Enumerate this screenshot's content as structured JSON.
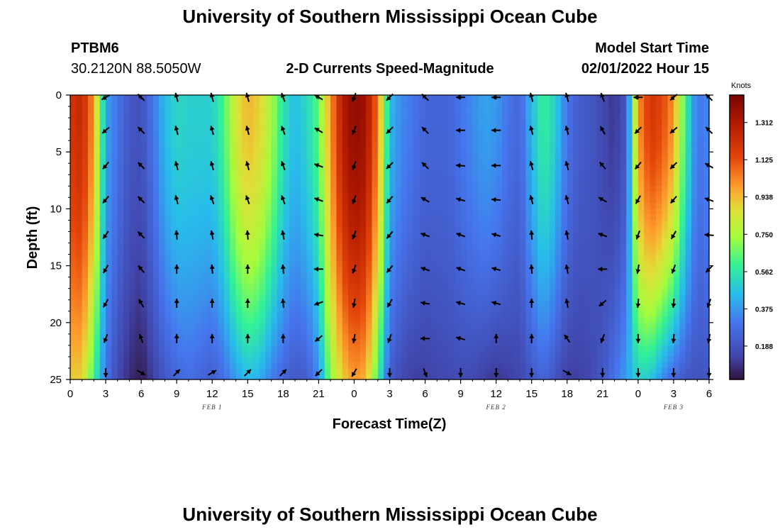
{
  "page": {
    "title_top": "University of Southern Mississippi Ocean Cube",
    "title_bottom": "University of Southern Mississippi Ocean Cube",
    "station": "PTBM6",
    "location": "30.2120N  88.5050W",
    "plot_title": "2-D Currents Speed-Magnitude",
    "model_start_label": "Model Start Time",
    "model_start_value": "02/01/2022 Hour 15"
  },
  "chart_data": {
    "type": "heatmap",
    "title": "2-D Currents Speed-Magnitude",
    "xlabel": "Forecast Time(Z)",
    "ylabel": "Depth (ft)",
    "x_tick_labels": [
      "0",
      "3",
      "6",
      "9",
      "12",
      "15",
      "18",
      "21",
      "0",
      "3",
      "6",
      "9",
      "12",
      "15",
      "18",
      "21",
      "0",
      "3",
      "6"
    ],
    "y_ticks": [
      0,
      5,
      10,
      15,
      20,
      25
    ],
    "ylim": [
      0,
      25
    ],
    "xlim": [
      0,
      54
    ],
    "date_labels": [
      {
        "text": "FEB 1",
        "x": 12
      },
      {
        "text": "FEB 2",
        "x": 36
      },
      {
        "text": "FEB 3",
        "x": 51
      }
    ],
    "colorbar": {
      "unit": "Knots",
      "ticks": [
        "1.312",
        "1.125",
        "0.938",
        "0.750",
        "0.562",
        "0.375",
        "0.188"
      ],
      "range": [
        0.02,
        1.45
      ]
    },
    "speed_profile": {
      "hours": [
        0,
        1,
        2,
        3,
        4,
        5,
        6,
        7,
        8,
        9,
        10,
        11,
        12,
        13,
        14,
        15,
        16,
        17,
        18,
        19,
        20,
        21,
        22,
        23,
        24,
        25,
        26,
        27,
        28,
        29,
        30,
        31,
        32,
        33,
        34,
        35,
        36,
        37,
        38,
        39,
        40,
        41,
        42,
        43,
        44,
        45,
        46,
        47,
        48,
        49,
        50,
        51,
        52,
        53,
        54
      ],
      "surface_knots": [
        1.2,
        1.25,
        1.0,
        0.4,
        0.3,
        0.2,
        0.18,
        0.3,
        0.45,
        0.52,
        0.5,
        0.5,
        0.5,
        0.62,
        0.85,
        0.95,
        0.9,
        0.75,
        0.55,
        0.45,
        0.52,
        0.65,
        1.0,
        1.3,
        1.4,
        1.35,
        1.05,
        0.45,
        0.35,
        0.3,
        0.25,
        0.25,
        0.25,
        0.3,
        0.35,
        0.4,
        0.38,
        0.3,
        0.25,
        0.45,
        0.6,
        0.5,
        0.3,
        0.22,
        0.2,
        0.15,
        0.1,
        0.2,
        1.0,
        1.2,
        1.15,
        1.0,
        0.6,
        0.3,
        0.35
      ],
      "bottom_knots": [
        0.9,
        0.9,
        0.6,
        0.3,
        0.15,
        0.08,
        0.04,
        0.12,
        0.2,
        0.25,
        0.28,
        0.25,
        0.22,
        0.28,
        0.38,
        0.45,
        0.42,
        0.32,
        0.25,
        0.2,
        0.22,
        0.35,
        0.7,
        0.9,
        1.0,
        0.95,
        0.6,
        0.22,
        0.15,
        0.12,
        0.12,
        0.14,
        0.15,
        0.16,
        0.15,
        0.12,
        0.1,
        0.12,
        0.14,
        0.2,
        0.25,
        0.18,
        0.12,
        0.12,
        0.15,
        0.2,
        0.3,
        0.4,
        0.5,
        0.48,
        0.35,
        0.25,
        0.2,
        0.18,
        0.2
      ]
    },
    "vectors": {
      "hours": [
        3,
        6,
        9,
        12,
        15,
        18,
        21,
        24,
        27,
        30,
        33,
        36,
        39,
        42,
        45,
        48,
        51,
        54
      ],
      "depths_ft": [
        0.2,
        3.1,
        6.2,
        9.2,
        12.3,
        15.3,
        18.3,
        21.4,
        24.4
      ],
      "direction_deg": [
        [
          240,
          315,
          345,
          345,
          345,
          340,
          300,
          200,
          225,
          315,
          270,
          270,
          345,
          345,
          340,
          270,
          230,
          315
        ],
        [
          230,
          315,
          345,
          345,
          345,
          340,
          300,
          200,
          225,
          315,
          270,
          270,
          345,
          345,
          330,
          225,
          230,
          315
        ],
        [
          220,
          315,
          345,
          345,
          345,
          340,
          290,
          200,
          225,
          315,
          275,
          270,
          345,
          345,
          320,
          220,
          225,
          300
        ],
        [
          220,
          315,
          345,
          340,
          340,
          340,
          290,
          200,
          220,
          300,
          285,
          275,
          345,
          345,
          300,
          210,
          220,
          290
        ],
        [
          215,
          315,
          355,
          350,
          355,
          350,
          280,
          200,
          220,
          290,
          290,
          285,
          355,
          350,
          290,
          200,
          210,
          275
        ],
        [
          210,
          320,
          360,
          355,
          360,
          355,
          270,
          200,
          220,
          290,
          290,
          285,
          355,
          350,
          270,
          190,
          200,
          225
        ],
        [
          210,
          330,
          360,
          360,
          360,
          355,
          250,
          190,
          210,
          280,
          285,
          285,
          360,
          350,
          230,
          185,
          185,
          200
        ],
        [
          200,
          340,
          0,
          0,
          0,
          0,
          230,
          190,
          200,
          270,
          285,
          0,
          0,
          325,
          200,
          180,
          185,
          190
        ],
        [
          180,
          120,
          45,
          60,
          45,
          45,
          225,
          210,
          180,
          160,
          180,
          180,
          180,
          120,
          180,
          180,
          180,
          180
        ]
      ]
    }
  }
}
